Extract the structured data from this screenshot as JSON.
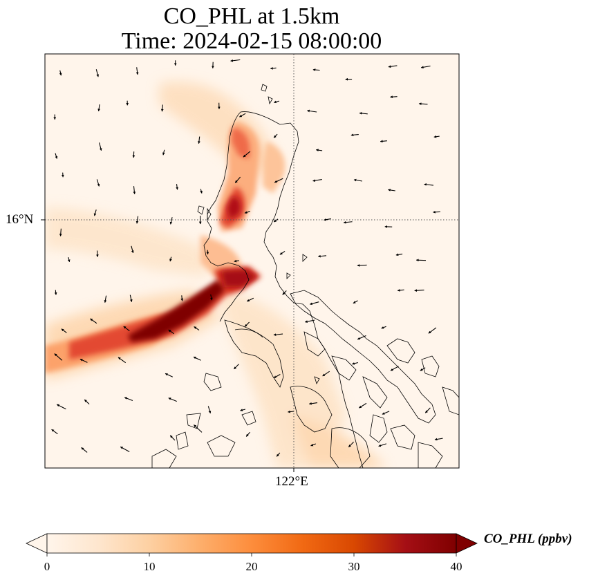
{
  "title_line1": "CO_PHL at 1.5km",
  "title_line2": "Time: 2024-02-15 08:00:00",
  "map": {
    "lat_label": "16°N",
    "lon_label": "122°E",
    "gridline_style": "dotted",
    "plume_colors": [
      "#fff5eb",
      "#fdd9b4",
      "#fdae6b",
      "#f16913",
      "#d94801",
      "#a50f15",
      "#7f0000"
    ]
  },
  "colorbar": {
    "label": "CO_PHL (ppbv)",
    "min": 0,
    "max": 40,
    "ticks": [
      "0",
      "10",
      "20",
      "30",
      "40"
    ],
    "extend": "both",
    "colors": [
      "#fff5eb",
      "#fee6ce",
      "#fdd0a2",
      "#fdae6b",
      "#fd8d3c",
      "#f16913",
      "#d94801",
      "#a50f15",
      "#7f0000"
    ]
  }
}
